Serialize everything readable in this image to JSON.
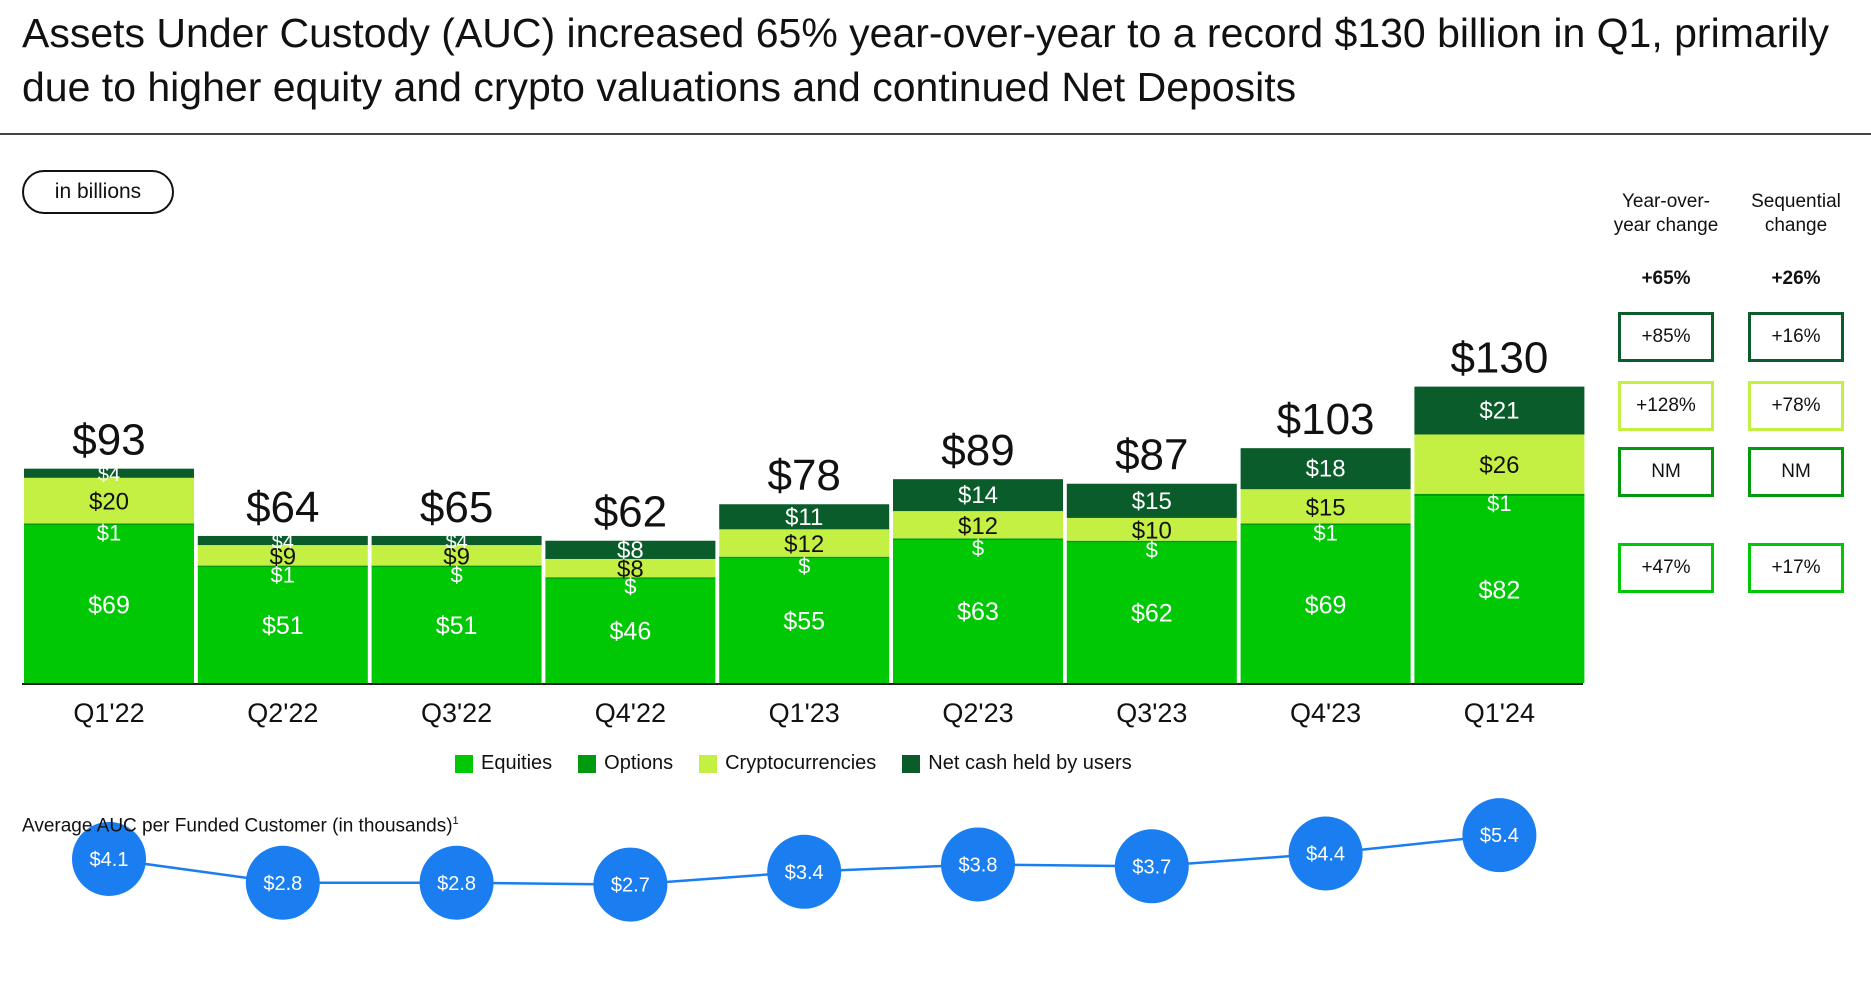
{
  "headline": "Assets Under Custody (AUC) increased 65% year-over-year to a record $130 billion in Q1, primarily due to higher equity and crypto valuations and continued Net Deposits",
  "unit_label": "in billions",
  "colors": {
    "equities": "#00c805",
    "options": "#009a0f",
    "crypto": "#c4f044",
    "cash": "#0a5c2b",
    "avg_circle": "#1a7ef0",
    "avg_line": "#1a7ef0"
  },
  "legend": [
    {
      "key": "equities",
      "label": "Equities"
    },
    {
      "key": "options",
      "label": "Options"
    },
    {
      "key": "crypto",
      "label": "Cryptocurrencies"
    },
    {
      "key": "cash",
      "label": "Net cash held by users"
    }
  ],
  "chart_data": [
    {
      "type": "bar",
      "stacked": true,
      "categories": [
        "Q1'22",
        "Q2'22",
        "Q3'22",
        "Q4'22",
        "Q1'23",
        "Q2'23",
        "Q3'23",
        "Q4'23",
        "Q1'24"
      ],
      "totals": [
        "$93",
        "$64",
        "$65",
        "$62",
        "$78",
        "$89",
        "$87",
        "$103",
        "$130"
      ],
      "series": [
        {
          "name": "Equities",
          "key": "equities",
          "values": [
            69,
            51,
            51,
            46,
            55,
            63,
            62,
            69,
            82
          ],
          "labels": [
            "$69",
            "$51",
            "$51",
            "$46",
            "$55",
            "$63",
            "$62",
            "$69",
            "$82"
          ]
        },
        {
          "name": "Options",
          "key": "options",
          "values": [
            1,
            0.5,
            0.5,
            0.4,
            0.4,
            0.4,
            0.4,
            1,
            1
          ],
          "labels": [
            "$1",
            "$1",
            "$",
            "$",
            "$",
            "$",
            "$",
            "$1",
            "$1"
          ]
        },
        {
          "name": "Cryptocurrencies",
          "key": "crypto",
          "values": [
            20,
            9,
            9,
            8,
            12,
            12,
            10,
            15,
            26
          ],
          "labels": [
            "$20",
            "$9",
            "$9",
            "$8",
            "$12",
            "$12",
            "$10",
            "$15",
            "$26"
          ]
        },
        {
          "name": "Net cash held by users",
          "key": "cash",
          "values": [
            4,
            4,
            4,
            8,
            11,
            14,
            15,
            18,
            21
          ],
          "labels": [
            "$4",
            "$4",
            "$4",
            "$8",
            "$11",
            "$14",
            "$15",
            "$18",
            "$21"
          ]
        }
      ],
      "xlabel": "",
      "ylabel": ""
    },
    {
      "type": "line",
      "title": "Average AUC per Funded Customer (in thousands)",
      "footnote_marker": "1",
      "categories": [
        "Q1'22",
        "Q2'22",
        "Q3'22",
        "Q4'22",
        "Q1'23",
        "Q2'23",
        "Q3'23",
        "Q4'23",
        "Q1'24"
      ],
      "values": [
        4.1,
        2.8,
        2.8,
        2.7,
        3.4,
        3.8,
        3.7,
        4.4,
        5.4
      ],
      "labels": [
        "$4.1",
        "$2.8",
        "$2.8",
        "$2.7",
        "$3.4",
        "$3.8",
        "$3.7",
        "$4.4",
        "$5.4"
      ]
    }
  ],
  "changes": {
    "headers": [
      "Year-over-year change",
      "Sequential change"
    ],
    "header_lines": [
      [
        "Year-over-",
        "year change"
      ],
      [
        "Sequential",
        "change"
      ]
    ],
    "totals": [
      "+65%",
      "+26%"
    ],
    "rows": [
      {
        "key": "cash",
        "yoy": "+85%",
        "seq": "+16%"
      },
      {
        "key": "crypto",
        "yoy": "+128%",
        "seq": "+78%"
      },
      {
        "key": "options",
        "yoy": "NM",
        "seq": "NM"
      },
      {
        "key": "equities",
        "yoy": "+47%",
        "seq": "+17%"
      }
    ]
  }
}
